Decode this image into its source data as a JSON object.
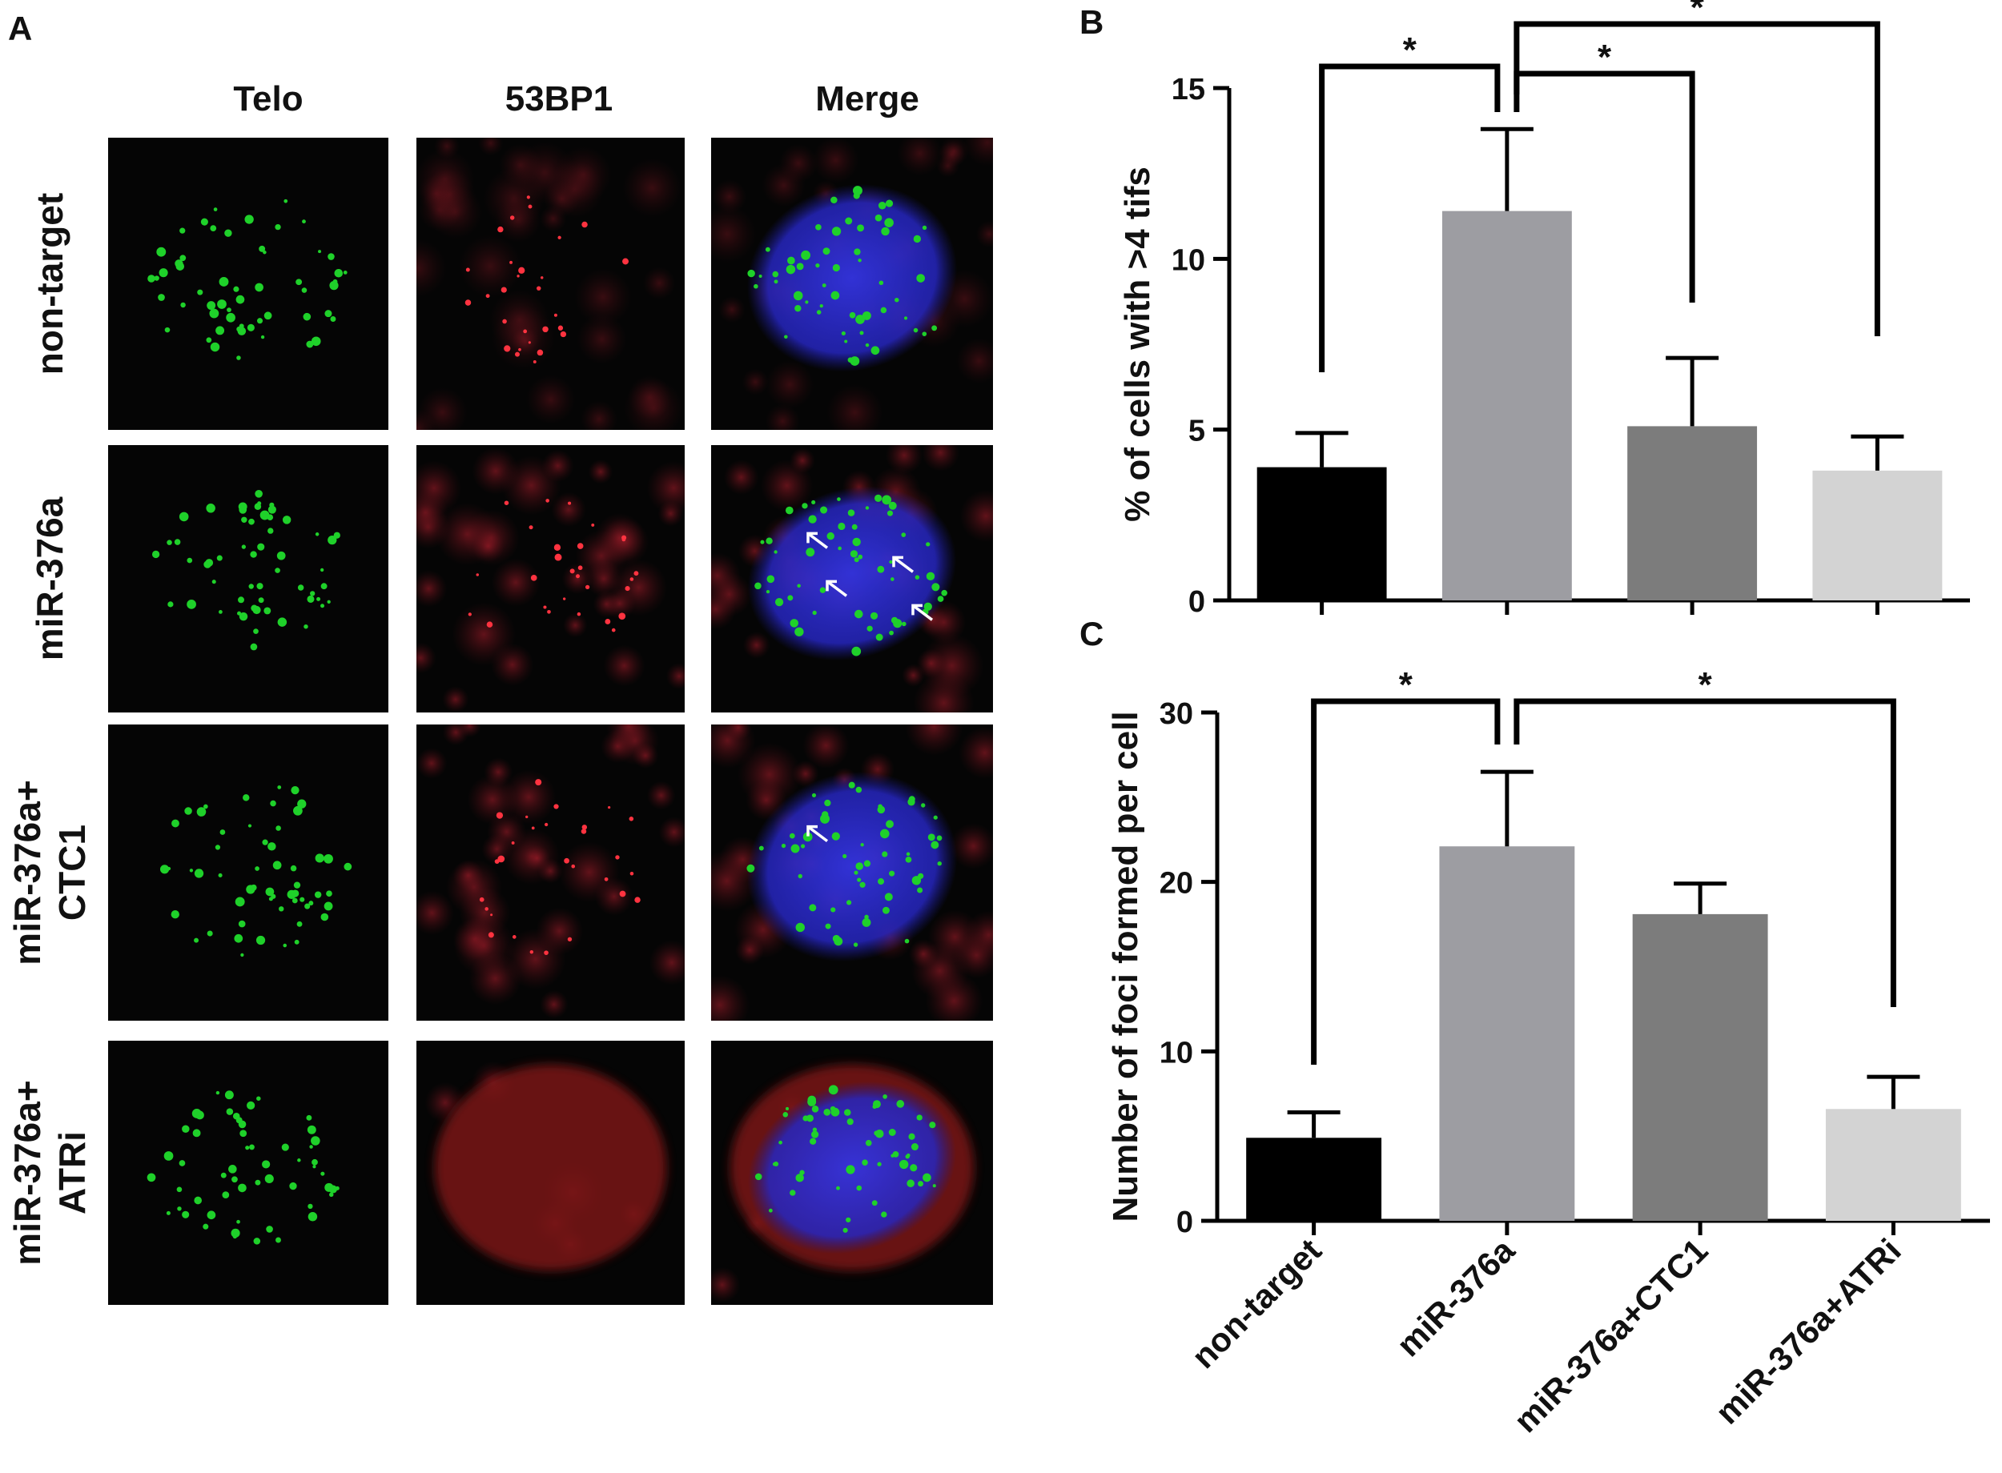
{
  "panels": {
    "a": "A",
    "b": "B",
    "c": "C"
  },
  "microscopy": {
    "columns": [
      "Telo",
      "53BP1",
      "Merge"
    ],
    "rows": [
      {
        "label_lines": [
          "non-target"
        ],
        "arrows_in_merge": 0
      },
      {
        "label_lines": [
          "miR-376a"
        ],
        "arrows_in_merge": 4
      },
      {
        "label_lines": [
          "miR-376a+",
          "CTC1"
        ],
        "arrows_in_merge": 1
      },
      {
        "label_lines": [
          "miR-376a+",
          "ATRi"
        ],
        "arrows_in_merge": 0
      }
    ],
    "colors": {
      "telo": "#1fd12a",
      "bp53": "#d8202a",
      "dapi": "#2a2ad0",
      "background": "#050505"
    }
  },
  "chart_data": [
    {
      "panel": "B",
      "type": "bar",
      "categories": [
        "non-target",
        "miR-376a",
        "miR-376a+CTC1",
        "miR-376a+ATRi"
      ],
      "values": [
        3.9,
        11.4,
        5.1,
        3.8
      ],
      "errors": [
        1.0,
        2.4,
        2.0,
        1.0
      ],
      "ylabel": "% of cells with >4 tifs",
      "ylim": [
        0,
        15
      ],
      "yticks": [
        "0",
        "5",
        "10",
        "15"
      ],
      "bar_colors": [
        "#000000",
        "#9d9da2",
        "#7c7c7c",
        "#d3d3d3"
      ],
      "significance": [
        {
          "from": "non-target",
          "to": "miR-376a",
          "label": "*"
        },
        {
          "from": "miR-376a",
          "to": "miR-376a+CTC1",
          "label": "*"
        },
        {
          "from": "miR-376a",
          "to": "miR-376a+ATRi",
          "label": "*"
        }
      ]
    },
    {
      "panel": "C",
      "type": "bar",
      "categories": [
        "non-target",
        "miR-376a",
        "miR-376a+CTC1",
        "miR-376a+ATRi"
      ],
      "values": [
        4.9,
        22.1,
        18.1,
        6.6
      ],
      "errors": [
        1.5,
        4.4,
        1.8,
        1.9
      ],
      "ylabel": "Number of foci formed per cell",
      "ylim": [
        0,
        30
      ],
      "yticks": [
        "0",
        "10",
        "20",
        "30"
      ],
      "bar_colors": [
        "#000000",
        "#9d9da2",
        "#7c7c7c",
        "#d3d3d3"
      ],
      "significance": [
        {
          "from": "non-target",
          "to": "miR-376a",
          "label": "*"
        },
        {
          "from": "miR-376a",
          "to": "miR-376a+ATRi",
          "label": "*"
        }
      ]
    }
  ]
}
